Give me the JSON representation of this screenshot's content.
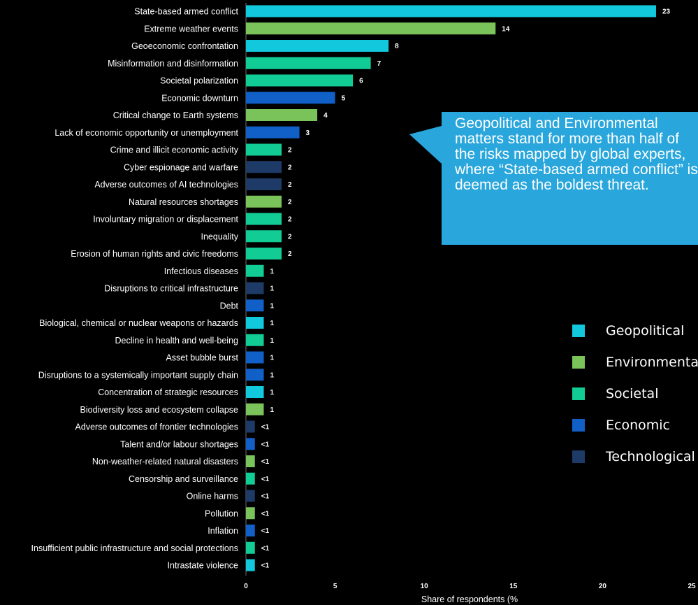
{
  "colors": {
    "geopolitical": "#12c8dc",
    "environmental": "#7ac25a",
    "societal": "#12cc96",
    "economic": "#1060c8",
    "technological": "#1d3b66",
    "callout": "#29a6dc",
    "axis": "#6b6b6b",
    "text": "#ffffff",
    "background": "#000000"
  },
  "callout": {
    "text": "Geopolitical and Environmental matters stand for more than half of the risks mapped by global experts, where “State-based armed conflict” is deemed as the boldest threat."
  },
  "legend": [
    {
      "label": "Geopolitical",
      "category": "geopolitical"
    },
    {
      "label": "Environmental",
      "category": "environmental"
    },
    {
      "label": "Societal",
      "category": "societal"
    },
    {
      "label": "Economic",
      "category": "economic"
    },
    {
      "label": "Technological",
      "category": "technological"
    }
  ],
  "chart_data": {
    "type": "bar",
    "orientation": "horizontal",
    "xlabel": "Share of respondents (%",
    "xlim": [
      0,
      25
    ],
    "xticks": [
      0,
      5,
      10,
      15,
      20,
      25
    ],
    "legend_position": "right",
    "bars": [
      {
        "label": "State-based armed conflict",
        "value": 23,
        "display": "23",
        "category": "geopolitical"
      },
      {
        "label": "Extreme weather events",
        "value": 14,
        "display": "14",
        "category": "environmental"
      },
      {
        "label": "Geoeconomic confrontation",
        "value": 8,
        "display": "8",
        "category": "geopolitical"
      },
      {
        "label": "Misinformation and disinformation",
        "value": 7,
        "display": "7",
        "category": "societal"
      },
      {
        "label": "Societal polarization",
        "value": 6,
        "display": "6",
        "category": "societal"
      },
      {
        "label": "Economic downturn",
        "value": 5,
        "display": "5",
        "category": "economic"
      },
      {
        "label": "Critical change to Earth systems",
        "value": 4,
        "display": "4",
        "category": "environmental"
      },
      {
        "label": "Lack of economic opportunity or unemployment",
        "value": 3,
        "display": "3",
        "category": "economic"
      },
      {
        "label": "Crime and illicit economic activity",
        "value": 2,
        "display": "2",
        "category": "societal"
      },
      {
        "label": "Cyber espionage and warfare",
        "value": 2,
        "display": "2",
        "category": "technological"
      },
      {
        "label": "Adverse outcomes of AI technologies",
        "value": 2,
        "display": "2",
        "category": "technological"
      },
      {
        "label": "Natural resources shortages",
        "value": 2,
        "display": "2",
        "category": "environmental"
      },
      {
        "label": "Involuntary migration or displacement",
        "value": 2,
        "display": "2",
        "category": "societal"
      },
      {
        "label": "Inequality",
        "value": 2,
        "display": "2",
        "category": "societal"
      },
      {
        "label": "Erosion of human rights and civic freedoms",
        "value": 2,
        "display": "2",
        "category": "societal"
      },
      {
        "label": "Infectious diseases",
        "value": 1,
        "display": "1",
        "category": "societal"
      },
      {
        "label": "Disruptions to critical infrastructure",
        "value": 1,
        "display": "1",
        "category": "technological"
      },
      {
        "label": "Debt",
        "value": 1,
        "display": "1",
        "category": "economic"
      },
      {
        "label": "Biological, chemical or nuclear weapons or hazards",
        "value": 1,
        "display": "1",
        "category": "geopolitical"
      },
      {
        "label": "Decline in health and well-being",
        "value": 1,
        "display": "1",
        "category": "societal"
      },
      {
        "label": "Asset bubble burst",
        "value": 1,
        "display": "1",
        "category": "economic"
      },
      {
        "label": "Disruptions to a systemically important supply chain",
        "value": 1,
        "display": "1",
        "category": "economic"
      },
      {
        "label": "Concentration of strategic resources",
        "value": 1,
        "display": "1",
        "category": "geopolitical"
      },
      {
        "label": "Biodiversity loss and ecosystem collapse",
        "value": 1,
        "display": "1",
        "category": "environmental"
      },
      {
        "label": "Adverse outcomes of frontier technologies",
        "value": 0.5,
        "display": "<1",
        "category": "technological"
      },
      {
        "label": "Talent and/or labour shortages",
        "value": 0.5,
        "display": "<1",
        "category": "economic"
      },
      {
        "label": "Non-weather-related natural disasters",
        "value": 0.5,
        "display": "<1",
        "category": "environmental"
      },
      {
        "label": "Censorship and surveillance",
        "value": 0.5,
        "display": "<1",
        "category": "societal"
      },
      {
        "label": "Online harms",
        "value": 0.5,
        "display": "<1",
        "category": "technological"
      },
      {
        "label": "Pollution",
        "value": 0.5,
        "display": "<1",
        "category": "environmental"
      },
      {
        "label": "Inflation",
        "value": 0.5,
        "display": "<1",
        "category": "economic"
      },
      {
        "label": "Insufficient public infrastructure and social protections",
        "value": 0.5,
        "display": "<1",
        "category": "societal"
      },
      {
        "label": "Intrastate violence",
        "value": 0.5,
        "display": "<1",
        "category": "geopolitical"
      }
    ]
  }
}
